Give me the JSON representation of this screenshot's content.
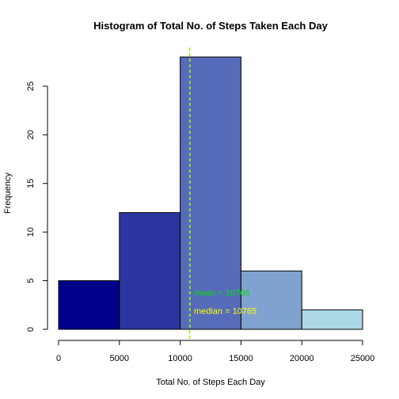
{
  "chart_data": {
    "type": "histogram",
    "title": "Histogram of Total No. of Steps Taken Each Day",
    "xlabel": "Total No. of Steps Each Day",
    "ylabel": "Frequency",
    "xlim": [
      0,
      25000
    ],
    "ylim": [
      0,
      28
    ],
    "x_ticks": [
      0,
      5000,
      10000,
      15000,
      20000,
      25000
    ],
    "y_ticks": [
      0,
      5,
      10,
      15,
      20,
      25
    ],
    "bins": [
      {
        "from": 0,
        "to": 5000,
        "count": 5,
        "color": "#00008B"
      },
      {
        "from": 5000,
        "to": 10000,
        "count": 12,
        "color": "#2C36A0"
      },
      {
        "from": 10000,
        "to": 15000,
        "count": 28,
        "color": "#566CBA"
      },
      {
        "from": 15000,
        "to": 20000,
        "count": 6,
        "color": "#80A2CE"
      },
      {
        "from": 20000,
        "to": 25000,
        "count": 2,
        "color": "#ADD8E6"
      }
    ],
    "reference_lines": [
      {
        "name": "mean",
        "value": 10766,
        "color": "#00E000"
      },
      {
        "name": "median",
        "value": 10765,
        "color": "#FFFF00"
      }
    ],
    "annotations": [
      {
        "text": "mean = 10766",
        "x": 11000,
        "y": 3.8,
        "color": "#00E000"
      },
      {
        "text": "median = 10765",
        "x": 11000,
        "y": 1.9,
        "color": "#FFFF00"
      }
    ],
    "grid": false,
    "legend": "none"
  }
}
